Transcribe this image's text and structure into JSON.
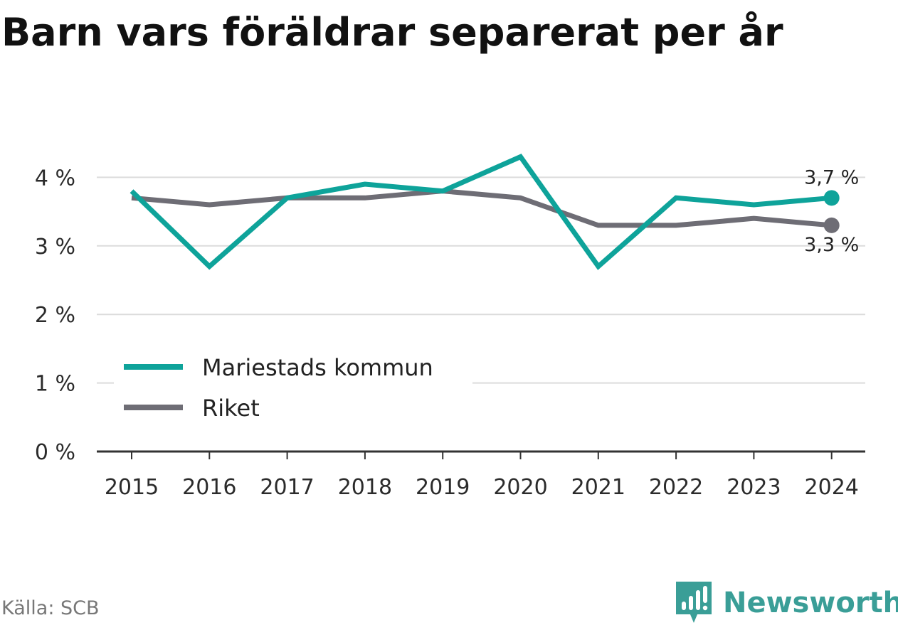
{
  "title": "Barn vars föräldrar separerat per år",
  "source": "Källa: SCB",
  "brand": {
    "name": "Newsworthy",
    "icon": "newsworthy-logo-icon",
    "color": "#3a9e97"
  },
  "chart_data": {
    "type": "line",
    "title": "Barn vars föräldrar separerat per år",
    "xlabel": "",
    "ylabel": "",
    "x": [
      "2015",
      "2016",
      "2017",
      "2018",
      "2019",
      "2020",
      "2021",
      "2022",
      "2023",
      "2024"
    ],
    "yticks": [
      0,
      1,
      2,
      3,
      4
    ],
    "ytick_labels": [
      "0 %",
      "1 %",
      "2 %",
      "3 %",
      "4 %"
    ],
    "ylim": [
      0,
      4
    ],
    "grid": true,
    "legend_position": "bottom-left",
    "series": [
      {
        "name": "Mariestads kommun",
        "color": "#0ea39a",
        "values": [
          3.8,
          2.7,
          3.7,
          3.9,
          3.8,
          4.3,
          2.7,
          3.7,
          3.6,
          3.7
        ],
        "end_label": "3,7 %"
      },
      {
        "name": "Riket",
        "color": "#6e6d75",
        "values": [
          3.7,
          3.6,
          3.7,
          3.7,
          3.8,
          3.7,
          3.3,
          3.3,
          3.4,
          3.3
        ],
        "end_label": "3,3 %"
      }
    ]
  }
}
